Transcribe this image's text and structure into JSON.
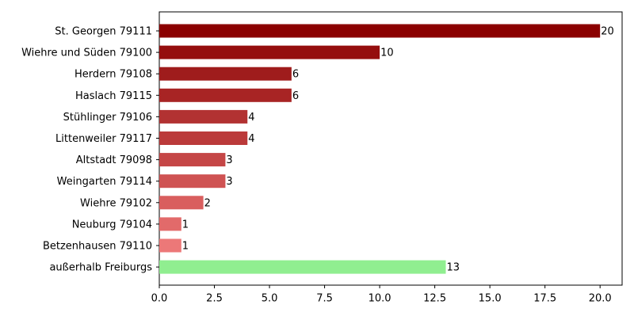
{
  "chart_data": {
    "type": "barh",
    "categories": [
      "St. Georgen 79111",
      "Wiehre und Süden 79100",
      "Herdern 79108",
      "Haslach 79115",
      "Stühlinger 79106",
      "Littenweiler 79117",
      "Altstadt 79098",
      "Weingarten 79114",
      "Wiehre 79102",
      "Neuburg 79104",
      "Betzenhausen 79110",
      "außerhalb Freiburgs"
    ],
    "values": [
      20,
      10,
      6,
      6,
      4,
      4,
      3,
      3,
      2,
      1,
      1,
      13
    ],
    "colors": [
      "#8b0000",
      "#950e0e",
      "#9f1c1c",
      "#a82424",
      "#b23232",
      "#bb3a3a",
      "#c54646",
      "#cf5252",
      "#d95e5e",
      "#e26a6a",
      "#ec7878",
      "#90ee90"
    ],
    "xlim": [
      0,
      21
    ],
    "xticks": [
      {
        "value": 0,
        "label": "0.0"
      },
      2.5,
      {
        "value": 5,
        "label": "5.0"
      },
      7.5,
      {
        "value": 10,
        "label": "10.0"
      },
      12.5,
      {
        "value": 15,
        "label": "15.0"
      },
      17.5,
      {
        "value": 20,
        "label": "20.0"
      }
    ]
  }
}
